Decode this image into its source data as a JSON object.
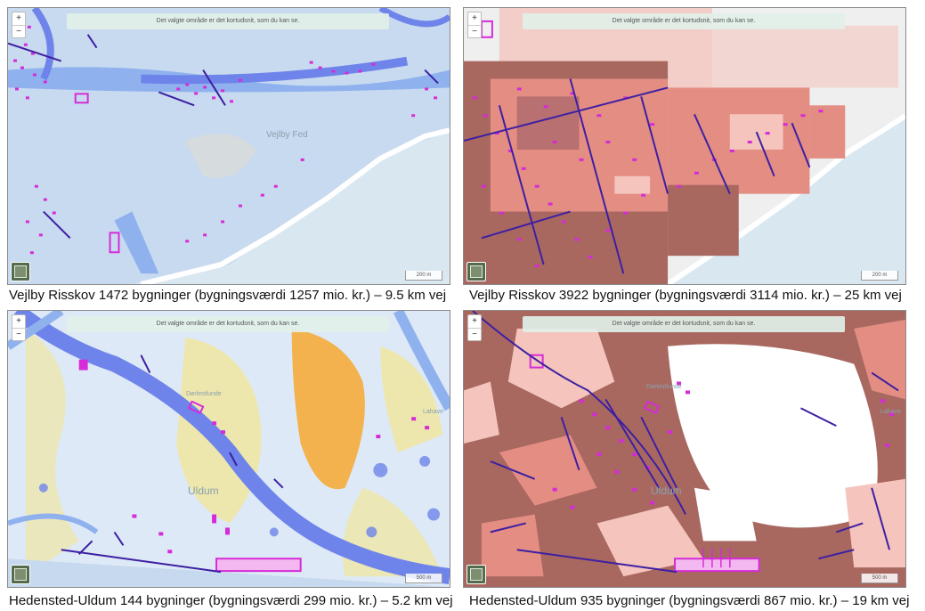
{
  "map_ui": {
    "banner": "Det valgte område er det kortudsnit, som du kan se.",
    "zoom_in": "+",
    "zoom_out": "−",
    "scale_top": "200 m",
    "scale_bottom": "500 m"
  },
  "places": {
    "vejlby_fed": "Vejlby Fed",
    "uldum": "Uldum",
    "darleselunde": "Dørlestlunde",
    "lahave": "Lahave"
  },
  "captions": {
    "tl": "Vejlby Risskov 1472 bygninger (bygningsværdi 1257 mio. kr.) – 9.5 km vej",
    "tr": "Vejlby Risskov 3922 bygninger (bygningsværdi 3114 mio. kr.) – 25 km vej",
    "bl": "Hedensted-Uldum 144 bygninger (bygningsværdi 299 mio. kr.) – 5.2 km vej",
    "br": "Hedensted-Uldum 935 bygninger (bygningsværdi 867 mio. kr.) – 19 km vej"
  },
  "colors": {
    "flood_light": "#c6d9ee",
    "flood_mid": "#8fb2ef",
    "flood_deep": "#6f84ea",
    "risk_dark": "#a86860",
    "risk_mid": "#e38d83",
    "risk_light": "#f4c4bd",
    "building": "#d62bd8",
    "road": "#3d1fa3",
    "sea": "#d9e7f0",
    "yellow": "#f5e68e",
    "orange": "#f3b24d"
  }
}
